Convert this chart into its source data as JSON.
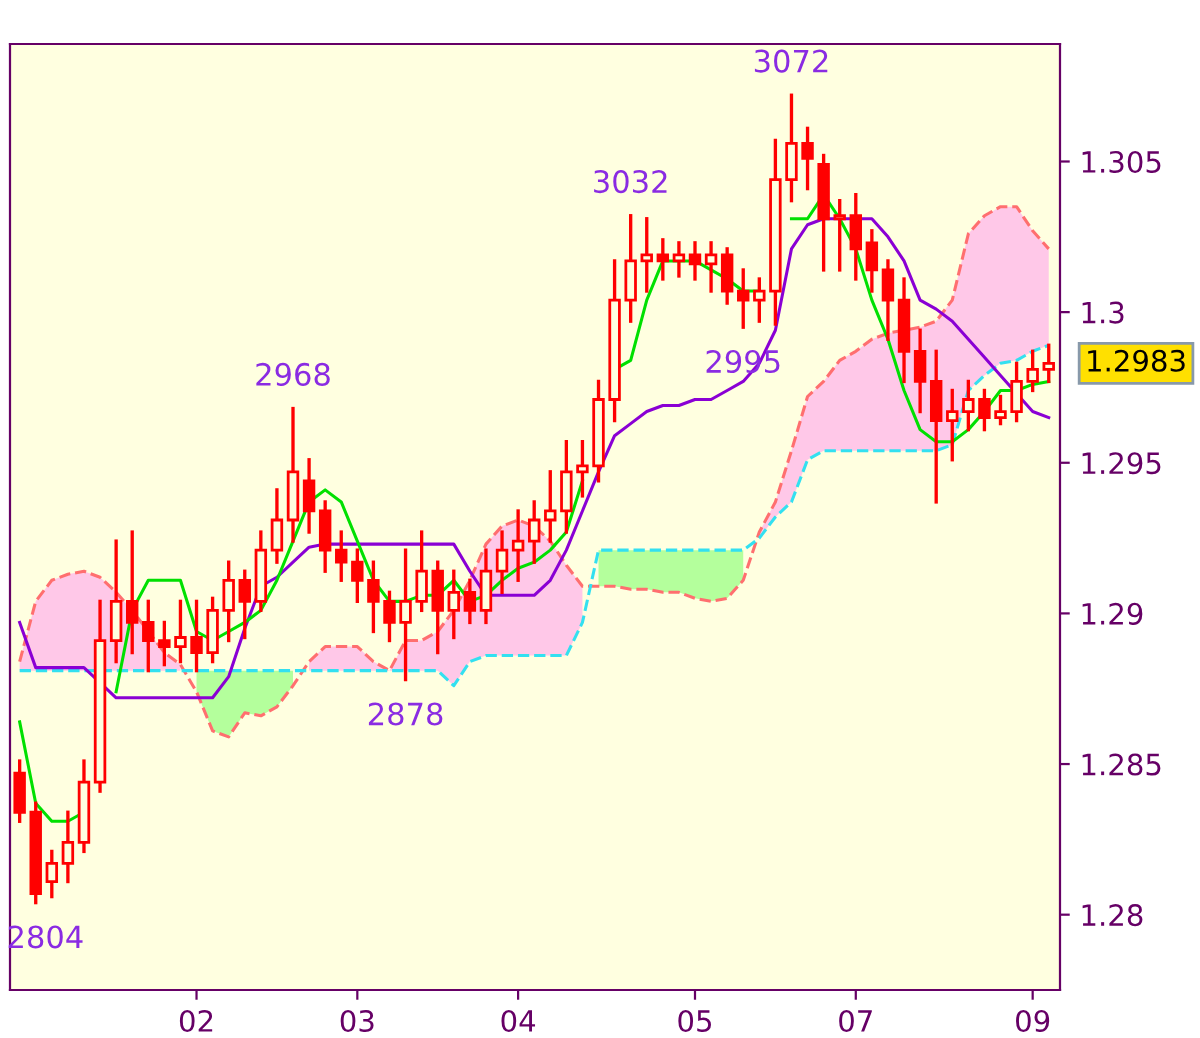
{
  "chart_data": {
    "type": "candlestick",
    "color": "#ff0000",
    "categories": [
      null,
      null,
      null,
      null,
      null,
      null,
      null,
      null,
      null,
      null,
      null,
      "02",
      null,
      null,
      null,
      null,
      null,
      null,
      null,
      null,
      null,
      "03",
      null,
      null,
      null,
      null,
      null,
      null,
      null,
      null,
      null,
      "04",
      null,
      null,
      null,
      null,
      null,
      null,
      null,
      null,
      null,
      null,
      "05",
      null,
      null,
      null,
      null,
      null,
      null,
      null,
      null,
      null,
      "07",
      null,
      null,
      null,
      null,
      null,
      null,
      null,
      null,
      null,
      null,
      "09",
      null
    ],
    "ohlc": [
      [
        1.2847,
        1.2851,
        1.2831,
        1.2834
      ],
      [
        1.2834,
        1.2837,
        1.2804,
        1.2807
      ],
      [
        1.2811,
        1.2821,
        1.2806,
        1.2817
      ],
      [
        1.2817,
        1.2834,
        1.2811,
        1.2824
      ],
      [
        1.2824,
        1.2851,
        1.2821,
        1.2844
      ],
      [
        1.2844,
        1.2904,
        1.2841,
        1.2891
      ],
      [
        1.2891,
        1.2924,
        1.2884,
        1.2904
      ],
      [
        1.2904,
        1.2927,
        1.2887,
        1.2897
      ],
      [
        1.2897,
        1.2904,
        1.2881,
        1.2891
      ],
      [
        1.2891,
        1.2897,
        1.2883,
        1.2889
      ],
      [
        1.2889,
        1.2904,
        1.2884,
        1.2892
      ],
      [
        1.2892,
        1.2904,
        1.2881,
        1.2887
      ],
      [
        1.2887,
        1.2905,
        1.2884,
        1.2901
      ],
      [
        1.2901,
        1.2917,
        1.2891,
        1.2911
      ],
      [
        1.2911,
        1.2914,
        1.2892,
        1.2904
      ],
      [
        1.2904,
        1.2927,
        1.2901,
        1.2921
      ],
      [
        1.2921,
        1.2941,
        1.2917,
        1.2931
      ],
      [
        1.2931,
        1.2968,
        1.2924,
        1.2947
      ],
      [
        1.2944,
        1.2951,
        1.2927,
        1.2934
      ],
      [
        1.2934,
        1.2937,
        1.2914,
        1.2921
      ],
      [
        1.2921,
        1.2927,
        1.2911,
        1.2917
      ],
      [
        1.2917,
        1.2921,
        1.2904,
        1.2911
      ],
      [
        1.2911,
        1.2917,
        1.2894,
        1.2904
      ],
      [
        1.2904,
        1.2907,
        1.2891,
        1.2897
      ],
      [
        1.2897,
        1.2921,
        1.2878,
        1.2904
      ],
      [
        1.2904,
        1.2927,
        1.2901,
        1.2914
      ],
      [
        1.2914,
        1.2917,
        1.2887,
        1.2901
      ],
      [
        1.2901,
        1.2914,
        1.2892,
        1.2907
      ],
      [
        1.2907,
        1.2911,
        1.2897,
        1.2901
      ],
      [
        1.2901,
        1.2921,
        1.2897,
        1.2914
      ],
      [
        1.2914,
        1.2927,
        1.2907,
        1.2921
      ],
      [
        1.2921,
        1.2934,
        1.2911,
        1.2924
      ],
      [
        1.2924,
        1.2937,
        1.2917,
        1.2931
      ],
      [
        1.2931,
        1.2947,
        1.2924,
        1.2934
      ],
      [
        1.2934,
        1.2957,
        1.2927,
        1.2947
      ],
      [
        1.2947,
        1.2957,
        1.2939,
        1.2949
      ],
      [
        1.2949,
        1.2977,
        1.2944,
        1.2971
      ],
      [
        1.2971,
        1.3017,
        1.2964,
        1.3004
      ],
      [
        1.3004,
        1.3032,
        1.2997,
        1.3017
      ],
      [
        1.3017,
        1.3031,
        1.3007,
        1.3019
      ],
      [
        1.3019,
        1.3024,
        1.3011,
        1.3017
      ],
      [
        1.3017,
        1.3023,
        1.3012,
        1.3019
      ],
      [
        1.3019,
        1.3023,
        1.3011,
        1.3016
      ],
      [
        1.3016,
        1.3023,
        1.3007,
        1.3019
      ],
      [
        1.3019,
        1.3021,
        1.3003,
        1.3007
      ],
      [
        1.3007,
        1.3014,
        1.2995,
        1.3004
      ],
      [
        1.3004,
        1.3011,
        1.2997,
        1.3007
      ],
      [
        1.3007,
        1.3057,
        1.2996,
        1.3044
      ],
      [
        1.3044,
        1.3072,
        1.3037,
        1.3056
      ],
      [
        1.3056,
        1.3061,
        1.3041,
        1.3051
      ],
      [
        1.3049,
        1.3052,
        1.3014,
        1.3031
      ],
      [
        1.3031,
        1.3037,
        1.3014,
        1.3032
      ],
      [
        1.3032,
        1.3039,
        1.3011,
        1.3021
      ],
      [
        1.3023,
        1.3027,
        1.3007,
        1.3014
      ],
      [
        1.3014,
        1.3017,
        1.2991,
        1.3004
      ],
      [
        1.3004,
        1.3011,
        1.2977,
        1.2987
      ],
      [
        1.2987,
        1.2994,
        1.2967,
        1.2977
      ],
      [
        1.2977,
        1.2987,
        1.2937,
        1.2964
      ],
      [
        1.2964,
        1.2974,
        1.2951,
        1.2967
      ],
      [
        1.2967,
        1.2977,
        1.2961,
        1.2971
      ],
      [
        1.2971,
        1.2974,
        1.2961,
        1.2965
      ],
      [
        1.2965,
        1.2972,
        1.2963,
        1.2967
      ],
      [
        1.2967,
        1.2983,
        1.2964,
        1.2977
      ],
      [
        1.2977,
        1.2987,
        1.2974,
        1.2981
      ],
      [
        1.2981,
        1.2989,
        1.2977,
        1.2983
      ]
    ],
    "series": [
      {
        "type": "line",
        "line_style": "dashed",
        "color": "#ff6f6f",
        "values": [
          1.2884,
          1.2904,
          1.2911,
          1.2913,
          1.2914,
          1.2912,
          1.2907,
          1.2901,
          1.2894,
          1.2887,
          1.2883,
          1.2874,
          1.2861,
          1.2859,
          1.2867,
          1.2866,
          1.2869,
          1.2876,
          1.2884,
          1.2889,
          1.2889,
          1.2889,
          1.2884,
          1.2881,
          1.2891,
          1.2891,
          1.2894,
          1.2901,
          1.2911,
          1.2923,
          1.2929,
          1.2931,
          1.2929,
          1.2924,
          1.2916,
          1.2909,
          1.2909,
          1.2909,
          1.2908,
          1.2908,
          1.2907,
          1.2907,
          1.2905,
          1.2904,
          1.2905,
          1.2911,
          1.2927,
          1.2937,
          1.2954,
          1.2972,
          1.2977,
          1.2984,
          1.2987,
          1.2991,
          1.2993,
          1.2994,
          1.2995,
          1.2997,
          1.3004,
          1.3026,
          1.3032,
          1.3035,
          1.3035,
          1.3027,
          1.3021
        ],
        "colors": [
          "#ffc8e8",
          "#ffc8e8",
          "#ffc8e8",
          "#ffc8e8",
          "#ffc8e8",
          "#ffc8e8",
          "#ffc8e8",
          "#ffc8e8",
          "#ffc8e8",
          "#ffc8e8",
          "#ffc8e8",
          "#ffc8e8",
          "#ffc8e8",
          "#ffc8e8",
          "#ffc8e8",
          "#ffc8e8",
          "#ffc8e8",
          "#ffc8e8",
          "#ffc8e8",
          "#ffc8e8",
          "#ffc8e8",
          "#ffc8e8",
          "#ffc8e8",
          "#ffc8e8",
          "#ffc8e8",
          "#ffc8e8",
          "#ffc8e8",
          "#ffc8e8",
          "#ffc8e8",
          "#ffc8e8",
          "#ffc8e8",
          "#ffc8e8",
          "#ffc8e8",
          "#ffc8e8",
          "#ffc8e8",
          "#ffc8e8",
          "#ffc8e8",
          "#ffc8e8",
          "#ffc8e8",
          "#ffc8e8",
          "#ffc8e8",
          "#ffc8e8",
          "#ffc8e8",
          "#ffc8e8",
          "#ffc8e8",
          "#ffc8e8",
          "#ffc8e8",
          "#ffc8e8",
          "#ffc8e8",
          "#ffc8e8",
          "#ffc8e8",
          "#ffc8e8",
          "#ffc8e8",
          "#ffc8e8",
          "#ffc8e8",
          "#ffc8e8",
          "#ffc8e8",
          "#ffc8e8",
          "#ffc8e8",
          "#ffc8e8",
          "#ffc8e8",
          "#ffc8e8",
          "#ffc8e8",
          "#ffc8e8",
          "#ffc8e8"
        ],
        "upper": [
          1.2884,
          1.2904,
          1.2911,
          1.2913,
          1.2914,
          1.2912,
          1.2907,
          1.2901,
          1.2894,
          1.2887,
          1.2883,
          null,
          null,
          null,
          null,
          null,
          null,
          null,
          1.2884,
          1.2889,
          1.2889,
          1.2889,
          1.2884,
          1.2881,
          1.2891,
          1.2891,
          1.2894,
          1.2901,
          1.2911,
          1.2923,
          1.2929,
          1.2931,
          1.2929,
          1.2924,
          1.2916,
          1.2909,
          null,
          null,
          null,
          null,
          null,
          null,
          null,
          null,
          null,
          null,
          1.2927,
          1.2937,
          1.2954,
          1.2972,
          1.2977,
          1.2984,
          1.2987,
          1.2991,
          1.2993,
          1.2994,
          1.2995,
          1.2997,
          1.3004,
          1.3026,
          1.3032,
          1.3035,
          1.3035,
          1.3027,
          1.3021
        ],
        "lower": [
          1.2881,
          1.2881,
          1.2881,
          1.2881,
          1.2881,
          1.2881,
          1.2881,
          1.2881,
          1.2881,
          1.2881,
          1.2881,
          null,
          null,
          null,
          null,
          null,
          null,
          null,
          1.2881,
          1.2881,
          1.2881,
          1.2881,
          1.2881,
          1.2881,
          1.2881,
          1.2881,
          1.2881,
          1.2876,
          1.2884,
          1.2886,
          1.2886,
          1.2886,
          1.2886,
          1.2886,
          1.2886,
          1.2897,
          null,
          null,
          null,
          null,
          null,
          null,
          null,
          null,
          null,
          null,
          1.2925,
          1.2932,
          1.2937,
          1.2951,
          1.2954,
          1.2954,
          1.2954,
          1.2954,
          1.2954,
          1.2954,
          1.2954,
          1.2954,
          1.2956,
          1.2974,
          1.2979,
          1.2983,
          1.2984,
          1.2987,
          1.2989
        ]
      },
      {
        "type": "line",
        "line_style": "dashed",
        "color": "#33e0f0",
        "values": [
          1.2881,
          1.2881,
          1.2881,
          1.2881,
          1.2881,
          1.2881,
          1.2881,
          1.2881,
          1.2881,
          1.2881,
          1.2881,
          1.2881,
          1.2881,
          1.2881,
          1.2881,
          1.2881,
          1.2881,
          1.2881,
          1.2881,
          1.2881,
          1.2881,
          1.2881,
          1.2881,
          1.2881,
          1.2881,
          1.2881,
          1.2881,
          1.2876,
          1.2884,
          1.2886,
          1.2886,
          1.2886,
          1.2886,
          1.2886,
          1.2886,
          1.2897,
          1.2921,
          1.2921,
          1.2921,
          1.2921,
          1.2921,
          1.2921,
          1.2921,
          1.2921,
          1.2921,
          1.2921,
          1.2925,
          1.2932,
          1.2937,
          1.2951,
          1.2954,
          1.2954,
          1.2954,
          1.2954,
          1.2954,
          1.2954,
          1.2954,
          1.2954,
          1.2956,
          1.2974,
          1.2979,
          1.2983,
          1.2984,
          1.2987,
          1.2989
        ],
        "colors": [
          "#b4ff9c",
          "#b4ff9c",
          "#b4ff9c",
          "#b4ff9c",
          "#b4ff9c",
          "#b4ff9c",
          "#b4ff9c",
          "#b4ff9c",
          "#b4ff9c",
          "#b4ff9c",
          "#b4ff9c",
          "#b4ff9c",
          "#b4ff9c",
          "#b4ff9c",
          "#b4ff9c",
          "#b4ff9c",
          "#b4ff9c",
          "#b4ff9c",
          "#b4ff9c",
          "#b4ff9c",
          "#b4ff9c",
          "#b4ff9c",
          "#b4ff9c",
          "#b4ff9c",
          "#b4ff9c",
          "#b4ff9c",
          "#b4ff9c",
          "#b4ff9c",
          "#b4ff9c",
          "#b4ff9c",
          "#b4ff9c",
          "#b4ff9c",
          "#b4ff9c",
          "#b4ff9c",
          "#b4ff9c",
          "#b4ff9c",
          "#b4ff9c",
          "#b4ff9c",
          "#b4ff9c",
          "#b4ff9c",
          "#b4ff9c",
          "#b4ff9c",
          "#b4ff9c",
          "#b4ff9c",
          "#b4ff9c",
          "#b4ff9c",
          "#b4ff9c",
          "#b4ff9c",
          "#b4ff9c",
          "#b4ff9c",
          "#b4ff9c",
          "#b4ff9c",
          "#b4ff9c",
          "#b4ff9c",
          "#b4ff9c",
          "#b4ff9c",
          "#b4ff9c",
          "#b4ff9c",
          "#b4ff9c",
          "#b4ff9c",
          "#b4ff9c",
          "#b4ff9c",
          "#b4ff9c",
          "#b4ff9c",
          "#b4ff9c"
        ],
        "upper": [
          null,
          null,
          null,
          null,
          null,
          null,
          null,
          null,
          null,
          null,
          null,
          1.2881,
          1.2881,
          1.2881,
          1.2881,
          1.2881,
          1.2881,
          1.2881,
          null,
          null,
          null,
          null,
          null,
          null,
          null,
          null,
          null,
          null,
          null,
          null,
          null,
          null,
          null,
          null,
          null,
          null,
          1.2921,
          1.2921,
          1.2921,
          1.2921,
          1.2921,
          1.2921,
          1.2921,
          1.2921,
          1.2921,
          1.2921,
          null,
          null,
          null,
          null,
          null,
          null,
          null,
          null,
          null,
          null,
          null,
          null,
          null,
          null,
          null,
          null,
          null,
          null,
          null
        ],
        "lower": [
          null,
          null,
          null,
          null,
          null,
          null,
          null,
          null,
          null,
          null,
          null,
          1.2874,
          1.2861,
          1.2859,
          1.2867,
          1.2866,
          1.2869,
          1.2876,
          null,
          null,
          null,
          null,
          null,
          null,
          null,
          null,
          null,
          null,
          null,
          null,
          null,
          null,
          null,
          null,
          null,
          null,
          1.2909,
          1.2909,
          1.2908,
          1.2908,
          1.2907,
          1.2907,
          1.2905,
          1.2904,
          1.2905,
          1.2911,
          null,
          null,
          null,
          null,
          null,
          null,
          null,
          null,
          null,
          null,
          null,
          null,
          null,
          null,
          null,
          null,
          null,
          null,
          null
        ]
      },
      {
        "type": "line",
        "color": "#8a00d4",
        "values": [
          1.2897,
          1.2882,
          1.2882,
          1.2882,
          1.2882,
          1.2877,
          1.2872,
          1.2872,
          1.2872,
          1.2872,
          1.2872,
          1.2872,
          1.2872,
          1.2879,
          1.2895,
          1.2909,
          1.2912,
          1.2917,
          1.2922,
          1.2923,
          1.2923,
          1.2923,
          1.2923,
          1.2923,
          1.2923,
          1.2923,
          1.2923,
          1.2923,
          1.2914,
          1.2906,
          1.2906,
          1.2906,
          1.2906,
          1.2911,
          1.2921,
          1.2934,
          1.2947,
          1.2959,
          1.2963,
          1.2967,
          1.2969,
          1.2969,
          1.2971,
          1.2971,
          1.2974,
          1.2977,
          1.2983,
          1.2994,
          1.3021,
          1.3029,
          1.3031,
          1.3031,
          1.3031,
          1.3031,
          1.3025,
          1.3017,
          1.3004,
          1.3001,
          1.2997,
          1.2991,
          1.2985,
          1.2979,
          1.2973,
          1.2967,
          1.2965
        ]
      },
      {
        "type": "line",
        "color": "#00e000",
        "values": [
          1.2864,
          1.2837,
          1.2831,
          1.2831,
          1.2834,
          null,
          1.2874,
          1.2901,
          1.2911,
          1.2911,
          1.2911,
          1.2894,
          1.2891,
          1.2894,
          1.2897,
          1.2901,
          1.2911,
          1.2924,
          1.2937,
          1.2941,
          1.2937,
          1.2924,
          1.2911,
          1.2904,
          1.2904,
          1.2906,
          1.2906,
          1.2911,
          1.2904,
          1.2906,
          1.2911,
          1.2915,
          1.2917,
          1.2921,
          1.2927,
          1.2944,
          null,
          1.2981,
          1.2984,
          1.3004,
          1.3017,
          1.3017,
          1.3017,
          1.3014,
          1.3011,
          1.3007,
          1.3007,
          null,
          1.3031,
          1.3031,
          1.3039,
          1.3031,
          1.3021,
          1.3004,
          1.2991,
          1.2974,
          1.2961,
          1.2957,
          1.2957,
          1.2961,
          1.2967,
          1.2974,
          1.2974,
          1.2976,
          1.2977
        ]
      }
    ],
    "annotations": [
      {
        "text": "2804",
        "y": 1.2804
      },
      {
        "text": "2968",
        "y": 1.2968
      },
      {
        "text": "2878",
        "y": 1.2878
      },
      {
        "text": "3032",
        "y": 1.3032
      },
      {
        "text": "2995",
        "y": 1.2995
      },
      {
        "text": "3072",
        "y": 1.3072
      },
      "1.2983"
    ],
    "ylim": [
      1.2775,
      1.3089
    ],
    "yticks": [
      1.28,
      1.285,
      1.29,
      1.295,
      1.3,
      1.305
    ],
    "grid": false,
    "legend": false
  }
}
